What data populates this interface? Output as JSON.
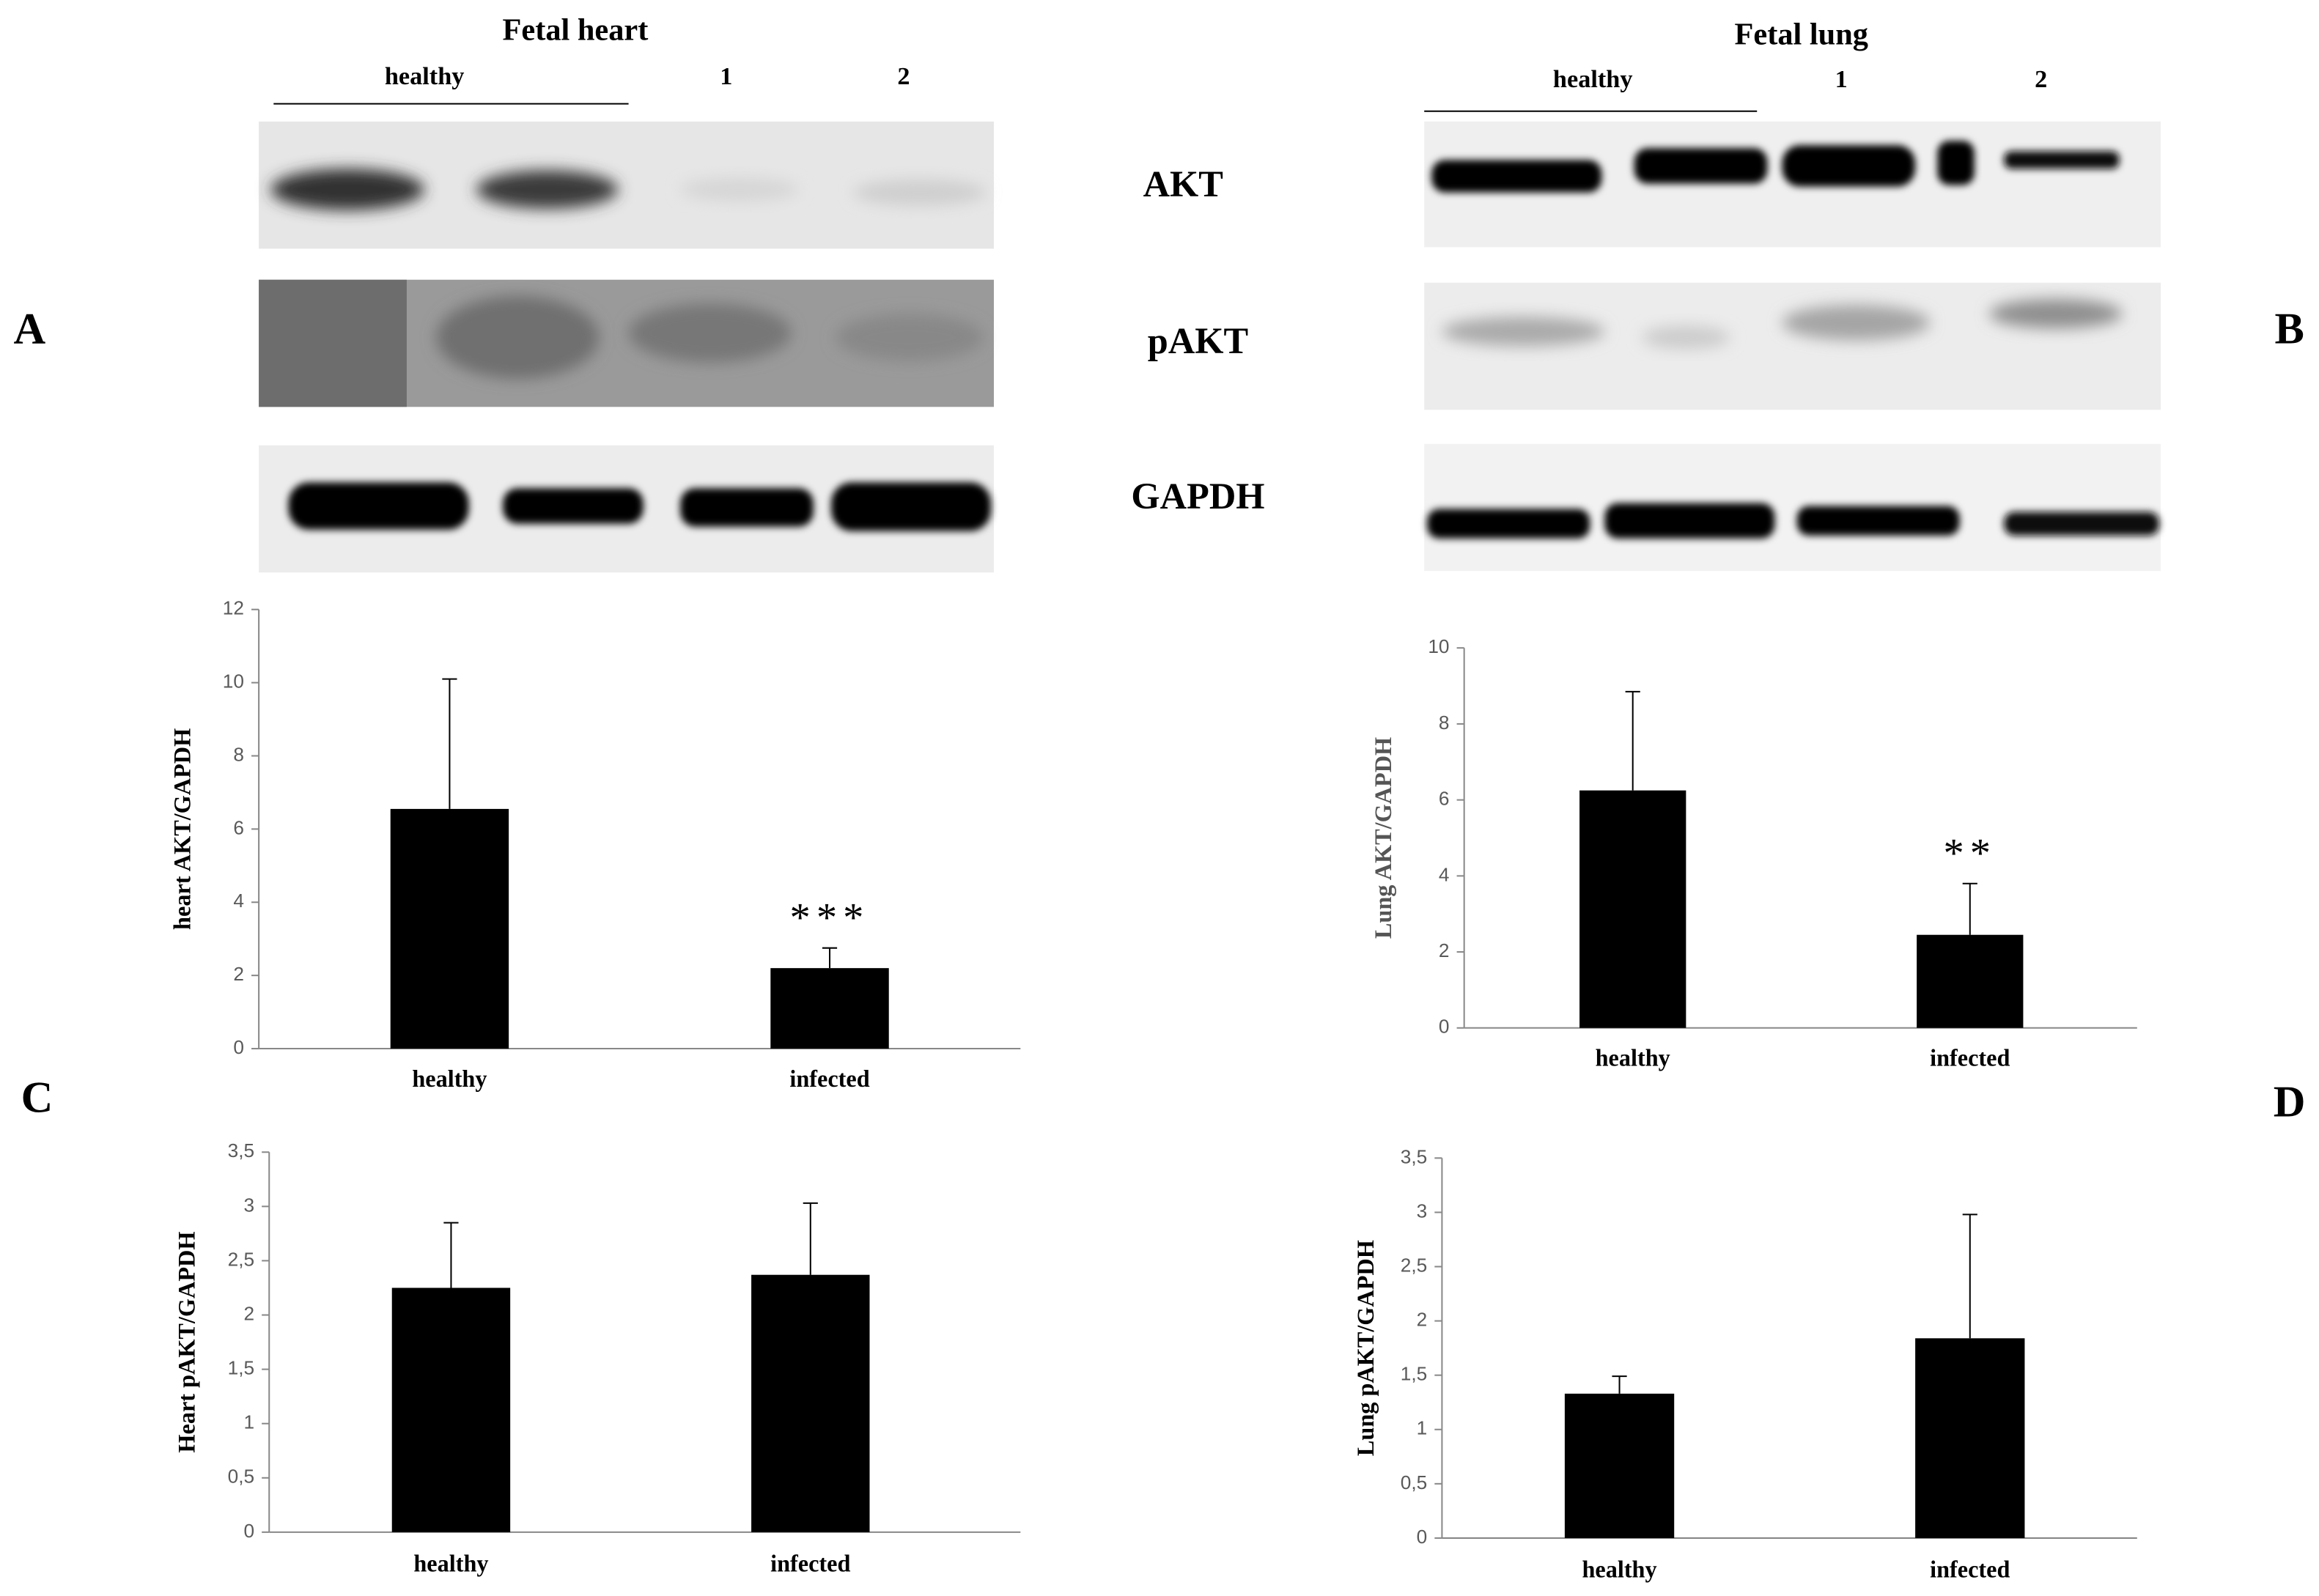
{
  "panels": [
    "A",
    "B",
    "C",
    "D"
  ],
  "blots": [
    {
      "title": "Fetal heart",
      "group_label": "healthy",
      "lanes": [
        "1",
        "2"
      ]
    },
    {
      "title": "Fetal lung",
      "group_label": "healthy",
      "lanes": [
        "1",
        "2"
      ]
    }
  ],
  "blot_rows": [
    "AKT",
    "pAKT",
    "GAPDH"
  ],
  "chart_data": [
    {
      "type": "bar",
      "y_label": "heart AKT/GAPDH",
      "categories": [
        "healthy",
        "infected"
      ],
      "values": [
        6.55,
        2.2
      ],
      "errors": [
        3.55,
        0.55
      ],
      "significance_labels": [
        null,
        "***"
      ],
      "color": "#000000",
      "ylim": [
        0,
        12
      ],
      "yticks": [
        0,
        2,
        4,
        6,
        8,
        10,
        12
      ],
      "grid": false
    },
    {
      "type": "bar",
      "y_label": "Lung AKT/GAPDH",
      "categories": [
        "healthy",
        "infected"
      ],
      "values": [
        6.25,
        2.45
      ],
      "errors": [
        2.6,
        1.35
      ],
      "significance_labels": [
        null,
        "**"
      ],
      "color": "#000000",
      "ylim": [
        0,
        10
      ],
      "yticks": [
        0,
        2,
        4,
        6,
        8,
        10
      ],
      "grid": false
    },
    {
      "type": "bar",
      "y_label": "Heart pAKT/GAPDH",
      "categories": [
        "healthy",
        "infected"
      ],
      "values": [
        2.25,
        2.37
      ],
      "errors": [
        0.6,
        0.66
      ],
      "color": "#000000",
      "ylim": [
        0,
        3.5
      ],
      "yticks": [
        0,
        {
          "value": 0.5,
          "label": "0,5"
        },
        1,
        {
          "value": 1.5,
          "label": "1,5"
        },
        2,
        {
          "value": 2.5,
          "label": "2,5"
        },
        3,
        {
          "value": 3.5,
          "label": "3,5"
        }
      ],
      "grid": false
    },
    {
      "type": "bar",
      "y_label": "Lung pAKT/GAPDH",
      "categories": [
        "healthy",
        "infected"
      ],
      "values": [
        1.33,
        1.84
      ],
      "errors": [
        0.16,
        1.14
      ],
      "color": "#000000",
      "ylim": [
        0,
        3.5
      ],
      "yticks": [
        0,
        {
          "value": 0.5,
          "label": "0,5"
        },
        1,
        {
          "value": 1.5,
          "label": "1,5"
        },
        2,
        {
          "value": 2.5,
          "label": "2,5"
        },
        3,
        {
          "value": 3.5,
          "label": "3,5"
        }
      ],
      "grid": false
    }
  ]
}
